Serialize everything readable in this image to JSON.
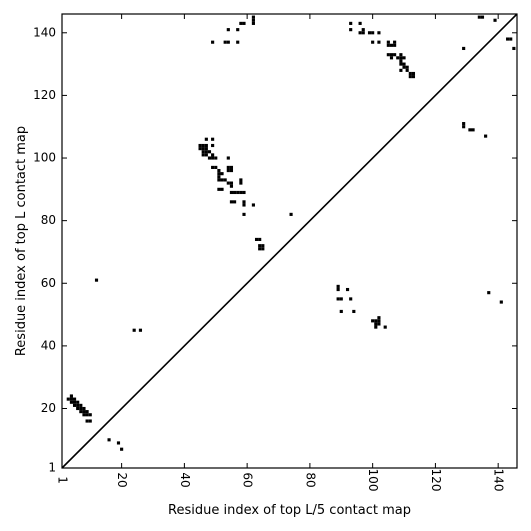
{
  "chart_data": {
    "type": "heatmap",
    "xlabel": "Residue index of top L/5 contact map",
    "ylabel": "Residue index of top L contact map",
    "xlim": [
      1,
      146
    ],
    "ylim": [
      1,
      146
    ],
    "x_ticks": [
      1,
      20,
      40,
      60,
      80,
      100,
      120,
      140
    ],
    "y_ticks": [
      1,
      20,
      40,
      60,
      80,
      100,
      120,
      140
    ],
    "tick_labels_x": [
      "1",
      "20",
      "40",
      "60",
      "80",
      "100",
      "120",
      "140"
    ],
    "tick_labels_y": [
      "1",
      "20",
      "40",
      "60",
      "80",
      "100",
      "120",
      "140"
    ],
    "diagonal": true,
    "grid": false,
    "cell_color": "#000000",
    "contacts": [
      [
        4,
        24
      ],
      [
        4,
        23
      ],
      [
        5,
        23
      ],
      [
        5,
        22
      ],
      [
        6,
        22
      ],
      [
        6,
        21
      ],
      [
        5,
        21
      ],
      [
        7,
        21
      ],
      [
        7,
        20
      ],
      [
        6,
        20
      ],
      [
        8,
        20
      ],
      [
        8,
        19
      ],
      [
        7,
        19
      ],
      [
        9,
        19
      ],
      [
        8,
        18
      ],
      [
        9,
        18
      ],
      [
        10,
        18
      ],
      [
        9,
        16
      ],
      [
        10,
        16
      ],
      [
        3,
        23
      ],
      [
        4,
        22
      ],
      [
        12,
        61
      ],
      [
        24,
        45
      ],
      [
        26,
        45
      ],
      [
        16,
        10
      ],
      [
        19,
        9
      ],
      [
        20,
        7
      ],
      [
        45,
        104
      ],
      [
        46,
        104
      ],
      [
        47,
        104
      ],
      [
        45,
        103
      ],
      [
        46,
        103
      ],
      [
        47,
        103
      ],
      [
        46,
        102
      ],
      [
        47,
        102
      ],
      [
        48,
        102
      ],
      [
        46,
        101
      ],
      [
        47,
        101
      ],
      [
        49,
        101
      ],
      [
        48,
        100
      ],
      [
        49,
        100
      ],
      [
        50,
        100
      ],
      [
        47,
        106
      ],
      [
        49,
        106
      ],
      [
        49,
        104
      ],
      [
        49,
        97
      ],
      [
        50,
        97
      ],
      [
        51,
        96
      ],
      [
        51,
        95
      ],
      [
        52,
        95
      ],
      [
        51,
        94
      ],
      [
        51,
        93
      ],
      [
        52,
        93
      ],
      [
        53,
        93
      ],
      [
        54,
        92
      ],
      [
        55,
        92
      ],
      [
        55,
        91
      ],
      [
        51,
        90
      ],
      [
        52,
        90
      ],
      [
        54,
        100
      ],
      [
        54,
        96
      ],
      [
        55,
        96
      ],
      [
        54,
        97
      ],
      [
        55,
        97
      ],
      [
        55,
        89
      ],
      [
        56,
        89
      ],
      [
        55,
        86
      ],
      [
        56,
        86
      ],
      [
        57,
        89
      ],
      [
        58,
        89
      ],
      [
        59,
        89
      ],
      [
        58,
        93
      ],
      [
        58,
        92
      ],
      [
        59,
        86
      ],
      [
        59,
        85
      ],
      [
        59,
        82
      ],
      [
        62,
        85
      ],
      [
        63,
        74
      ],
      [
        64,
        74
      ],
      [
        64,
        72
      ],
      [
        65,
        72
      ],
      [
        64,
        71
      ],
      [
        65,
        71
      ],
      [
        74,
        82
      ],
      [
        49,
        137
      ],
      [
        53,
        137
      ],
      [
        54,
        137
      ],
      [
        54,
        141
      ],
      [
        57,
        137
      ],
      [
        57,
        141
      ],
      [
        58,
        143
      ],
      [
        59,
        143
      ],
      [
        62,
        144
      ],
      [
        62,
        145
      ],
      [
        62,
        143
      ],
      [
        89,
        59
      ],
      [
        89,
        58
      ],
      [
        89,
        55
      ],
      [
        90,
        55
      ],
      [
        90,
        51
      ],
      [
        92,
        58
      ],
      [
        93,
        55
      ],
      [
        94,
        51
      ],
      [
        100,
        48
      ],
      [
        101,
        48
      ],
      [
        102,
        48
      ],
      [
        101,
        47
      ],
      [
        102,
        47
      ],
      [
        101,
        46
      ],
      [
        102,
        49
      ],
      [
        104,
        46
      ],
      [
        93,
        143
      ],
      [
        93,
        141
      ],
      [
        96,
        143
      ],
      [
        96,
        140
      ],
      [
        97,
        140
      ],
      [
        97,
        141
      ],
      [
        99,
        140
      ],
      [
        100,
        140
      ],
      [
        100,
        137
      ],
      [
        102,
        140
      ],
      [
        102,
        137
      ],
      [
        105,
        137
      ],
      [
        105,
        136
      ],
      [
        106,
        136
      ],
      [
        107,
        137
      ],
      [
        107,
        136
      ],
      [
        105,
        133
      ],
      [
        106,
        133
      ],
      [
        106,
        132
      ],
      [
        107,
        133
      ],
      [
        108,
        132
      ],
      [
        109,
        133
      ],
      [
        109,
        132
      ],
      [
        109,
        131
      ],
      [
        110,
        132
      ],
      [
        109,
        130
      ],
      [
        110,
        130
      ],
      [
        110,
        129
      ],
      [
        109,
        128
      ],
      [
        111,
        129
      ],
      [
        111,
        128
      ],
      [
        112,
        127
      ],
      [
        113,
        127
      ],
      [
        112,
        126
      ],
      [
        113,
        126
      ],
      [
        129,
        135
      ],
      [
        129,
        111
      ],
      [
        129,
        110
      ],
      [
        131,
        109
      ],
      [
        132,
        109
      ],
      [
        136,
        107
      ],
      [
        137,
        57
      ],
      [
        141,
        54
      ],
      [
        134,
        145
      ],
      [
        135,
        145
      ],
      [
        139,
        144
      ],
      [
        143,
        138
      ],
      [
        144,
        138
      ],
      [
        145,
        135
      ]
    ]
  }
}
